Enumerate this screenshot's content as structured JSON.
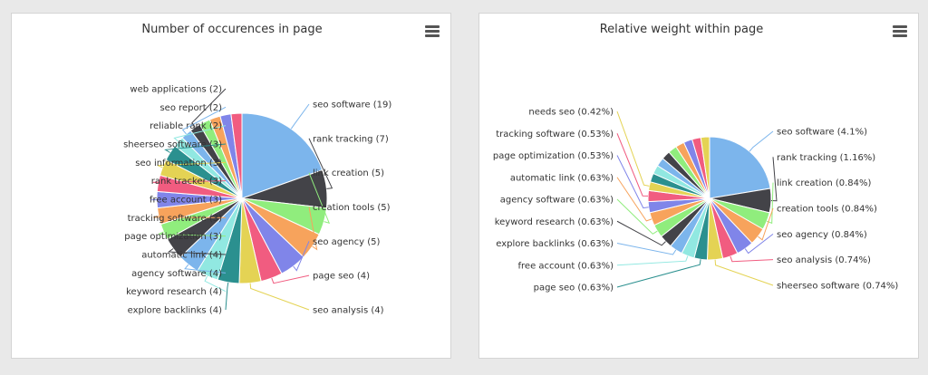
{
  "colors": [
    "#7cb5ec",
    "#434348",
    "#90ed7d",
    "#f7a35c",
    "#8085e9",
    "#f15c80",
    "#e4d354",
    "#2b908f",
    "#91e8e1"
  ],
  "chart_data": [
    {
      "type": "pie",
      "title": "Number of occurences in page",
      "slices": [
        {
          "name": "seo software",
          "value": 19,
          "label": "seo software (19)"
        },
        {
          "name": "rank tracking",
          "value": 7,
          "label": "rank tracking (7)"
        },
        {
          "name": "link creation",
          "value": 5,
          "label": "link creation (5)"
        },
        {
          "name": "creation tools",
          "value": 5,
          "label": "creation tools (5)"
        },
        {
          "name": "seo agency",
          "value": 5,
          "label": "seo agency (5)"
        },
        {
          "name": "page seo",
          "value": 4,
          "label": "page seo (4)"
        },
        {
          "name": "seo analysis",
          "value": 4,
          "label": "seo analysis (4)"
        },
        {
          "name": "explore backlinks",
          "value": 4,
          "label": "explore backlinks (4)"
        },
        {
          "name": "keyword research",
          "value": 4,
          "label": "keyword research (4)"
        },
        {
          "name": "agency software",
          "value": 4,
          "label": "agency software (4)"
        },
        {
          "name": "automatic link",
          "value": 4,
          "label": "automatic link (4)"
        },
        {
          "name": "page optimization",
          "value": 3,
          "label": "page optimization (3)"
        },
        {
          "name": "tracking software",
          "value": 3,
          "label": "tracking software (3)"
        },
        {
          "name": "free account",
          "value": 3,
          "label": "free account (3)"
        },
        {
          "name": "rank tracker",
          "value": 3,
          "label": "rank tracker (3)"
        },
        {
          "name": "seo information",
          "value": 3,
          "label": "seo information (3)"
        },
        {
          "name": "sheerseo software",
          "value": 3,
          "label": "sheerseo software (3)"
        },
        {
          "name": "reliable rank",
          "value": 2,
          "label": "reliable rank (2)"
        },
        {
          "name": "seo report",
          "value": 2,
          "label": "seo report (2)"
        },
        {
          "name": "web applications",
          "value": 2,
          "label": "web applications (2)"
        },
        {
          "name": "unlabeled slice 21",
          "value": 2,
          "label": ""
        },
        {
          "name": "unlabeled slice 22",
          "value": 2,
          "label": ""
        },
        {
          "name": "unlabeled slice 23",
          "value": 2,
          "label": ""
        },
        {
          "name": "unlabeled slice 24",
          "value": 2,
          "label": ""
        }
      ]
    },
    {
      "type": "pie",
      "title": "Relative weight within page",
      "slices": [
        {
          "name": "seo software",
          "value": 4.1,
          "label": "seo software (4.1%)"
        },
        {
          "name": "rank tracking",
          "value": 1.16,
          "label": "rank tracking (1.16%)"
        },
        {
          "name": "link creation",
          "value": 0.84,
          "label": "link creation (0.84%)"
        },
        {
          "name": "creation tools",
          "value": 0.84,
          "label": "creation tools (0.84%)"
        },
        {
          "name": "seo agency",
          "value": 0.84,
          "label": "seo agency (0.84%)"
        },
        {
          "name": "seo analysis",
          "value": 0.74,
          "label": "seo analysis (0.74%)"
        },
        {
          "name": "sheerseo software",
          "value": 0.74,
          "label": "sheerseo software (0.74%)"
        },
        {
          "name": "page seo",
          "value": 0.63,
          "label": "page seo (0.63%)"
        },
        {
          "name": "free account",
          "value": 0.63,
          "label": "free account (0.63%)"
        },
        {
          "name": "explore backlinks",
          "value": 0.63,
          "label": "explore backlinks (0.63%)"
        },
        {
          "name": "keyword research",
          "value": 0.63,
          "label": "keyword research (0.63%)"
        },
        {
          "name": "agency software",
          "value": 0.63,
          "label": "agency software (0.63%)"
        },
        {
          "name": "automatic link",
          "value": 0.63,
          "label": "automatic link (0.63%)"
        },
        {
          "name": "page optimization",
          "value": 0.53,
          "label": "page optimization (0.53%)"
        },
        {
          "name": "tracking software",
          "value": 0.53,
          "label": "tracking software (0.53%)"
        },
        {
          "name": "needs seo",
          "value": 0.42,
          "label": "needs seo (0.42%)"
        },
        {
          "name": "unlabeled slice 17",
          "value": 0.42,
          "label": ""
        },
        {
          "name": "unlabeled slice 18",
          "value": 0.42,
          "label": ""
        },
        {
          "name": "unlabeled slice 19",
          "value": 0.42,
          "label": ""
        },
        {
          "name": "unlabeled slice 20",
          "value": 0.42,
          "label": ""
        },
        {
          "name": "unlabeled slice 21",
          "value": 0.42,
          "label": ""
        },
        {
          "name": "unlabeled slice 22",
          "value": 0.42,
          "label": ""
        },
        {
          "name": "unlabeled slice 23",
          "value": 0.42,
          "label": ""
        },
        {
          "name": "unlabeled slice 24",
          "value": 0.42,
          "label": ""
        },
        {
          "name": "unlabeled slice 25",
          "value": 0.42,
          "label": ""
        }
      ]
    }
  ]
}
